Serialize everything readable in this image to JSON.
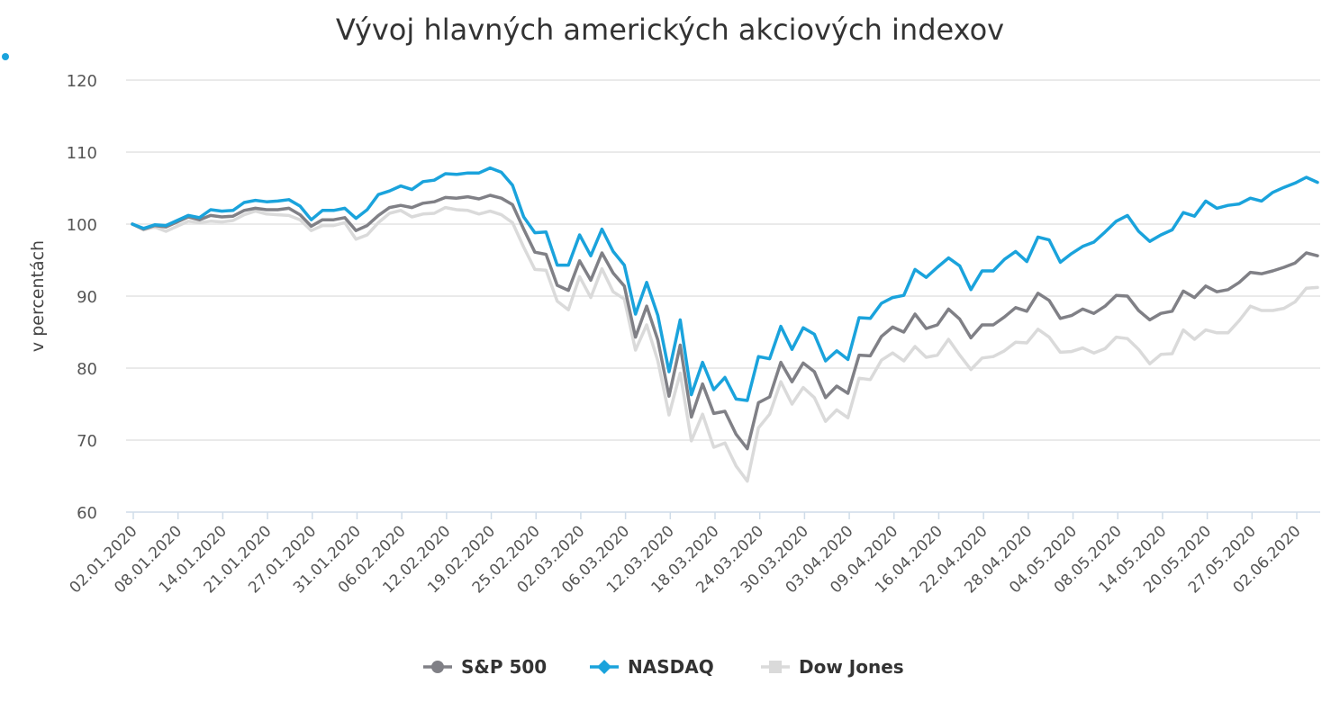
{
  "chart_data": {
    "type": "line",
    "title": "Vývoj hlavných amerických akciových indexov",
    "ylabel": "v percentách",
    "xlabel": "",
    "ylim": [
      60,
      120
    ],
    "yticks": [
      "60",
      "70",
      "80",
      "90",
      "100",
      "110",
      "120"
    ],
    "grid": true,
    "legend": "bottom-center",
    "x_tick_labels": [
      "02.01.2020",
      "08.01.2020",
      "14.01.2020",
      "21.01.2020",
      "27.01.2020",
      "31.01.2020",
      "06.02.2020",
      "12.02.2020",
      "19.02.2020",
      "25.02.2020",
      "02.03.2020",
      "06.03.2020",
      "12.03.2020",
      "18.03.2020",
      "24.03.2020",
      "30.03.2020",
      "03.04.2020",
      "09.04.2020",
      "16.04.2020",
      "22.04.2020",
      "28.04.2020",
      "04.05.2020",
      "08.05.2020",
      "14.05.2020",
      "20.05.2020",
      "27.05.2020",
      "02.06.2020"
    ],
    "series": [
      {
        "name": "S&P 500",
        "color": "#808086",
        "marker": "circle",
        "values": [
          100.0,
          99.3,
          99.8,
          99.6,
          100.3,
          101.0,
          100.6,
          101.2,
          101.0,
          101.1,
          101.9,
          102.2,
          102.0,
          102.0,
          102.2,
          101.3,
          99.7,
          100.6,
          100.6,
          100.9,
          99.1,
          99.8,
          101.2,
          102.3,
          102.6,
          102.3,
          102.9,
          103.1,
          103.7,
          103.6,
          103.8,
          103.5,
          104.0,
          103.6,
          102.7,
          99.3,
          96.1,
          95.8,
          91.5,
          90.8,
          94.9,
          92.2,
          96.0,
          93.2,
          91.4,
          84.3,
          88.6,
          83.9,
          76.1,
          83.2,
          73.2,
          77.8,
          73.7,
          74.0,
          70.8,
          68.8,
          75.2,
          76.0,
          80.8,
          78.1,
          80.7,
          79.5,
          75.9,
          77.5,
          76.5,
          81.8,
          81.7,
          84.4,
          85.7,
          85.0,
          87.5,
          85.5,
          86.0,
          88.2,
          86.8,
          84.2,
          86.0,
          86.0,
          87.1,
          88.4,
          87.9,
          90.4,
          89.4,
          86.9,
          87.3,
          88.2,
          87.6,
          88.6,
          90.1,
          90.0,
          88.0,
          86.7,
          87.6,
          87.9,
          90.7,
          89.8,
          91.4,
          90.6,
          90.9,
          91.9,
          93.3,
          93.1,
          93.5,
          94.0,
          94.6,
          96.0,
          95.6
        ]
      },
      {
        "name": "NASDAQ",
        "color": "#1aa3dc",
        "marker": "diamond",
        "values": [
          100.0,
          99.4,
          99.9,
          99.8,
          100.5,
          101.2,
          100.9,
          102.0,
          101.8,
          101.9,
          103.0,
          103.3,
          103.1,
          103.2,
          103.4,
          102.5,
          100.6,
          101.9,
          101.9,
          102.2,
          100.8,
          102.0,
          104.1,
          104.6,
          105.3,
          104.8,
          105.9,
          106.1,
          107.0,
          106.9,
          107.1,
          107.1,
          107.8,
          107.2,
          105.4,
          101.0,
          98.8,
          98.9,
          94.3,
          94.3,
          98.5,
          95.6,
          99.3,
          96.2,
          94.3,
          87.5,
          91.9,
          87.3,
          79.5,
          86.7,
          76.3,
          80.8,
          77.0,
          78.7,
          75.7,
          75.5,
          81.6,
          81.3,
          85.8,
          82.6,
          85.6,
          84.7,
          81.0,
          82.4,
          81.2,
          87.0,
          86.9,
          89.0,
          89.8,
          90.1,
          93.7,
          92.6,
          94.0,
          95.3,
          94.2,
          90.9,
          93.5,
          93.5,
          95.1,
          96.2,
          94.8,
          98.2,
          97.8,
          94.7,
          95.9,
          96.9,
          97.5,
          98.9,
          100.4,
          101.2,
          99.0,
          97.6,
          98.5,
          99.2,
          101.6,
          101.1,
          103.2,
          102.2,
          102.6,
          102.8,
          103.6,
          103.2,
          104.4,
          105.1,
          105.7,
          106.5,
          105.8
        ]
      },
      {
        "name": "Dow Jones",
        "color": "#dadada",
        "marker": "square",
        "values": [
          100.0,
          99.2,
          99.6,
          99.0,
          99.7,
          100.4,
          100.2,
          100.4,
          100.3,
          100.5,
          101.3,
          101.8,
          101.4,
          101.3,
          101.2,
          100.6,
          99.1,
          99.8,
          99.8,
          100.2,
          97.9,
          98.5,
          100.2,
          101.5,
          101.9,
          101.0,
          101.4,
          101.5,
          102.3,
          102.0,
          101.9,
          101.4,
          101.8,
          101.3,
          100.2,
          96.8,
          93.7,
          93.6,
          89.3,
          88.1,
          92.7,
          89.8,
          93.8,
          90.6,
          89.6,
          82.5,
          86.0,
          81.0,
          73.5,
          79.3,
          69.9,
          73.6,
          69.0,
          69.6,
          66.4,
          64.3,
          71.7,
          73.6,
          78.1,
          75.0,
          77.3,
          75.9,
          72.6,
          74.2,
          73.1,
          78.6,
          78.4,
          81.1,
          82.1,
          81.0,
          83.0,
          81.5,
          81.8,
          84.0,
          81.8,
          79.8,
          81.4,
          81.6,
          82.4,
          83.6,
          83.5,
          85.4,
          84.3,
          82.2,
          82.3,
          82.8,
          82.1,
          82.7,
          84.3,
          84.1,
          82.6,
          80.6,
          81.9,
          82.0,
          85.3,
          84.0,
          85.3,
          84.9,
          84.9,
          86.6,
          88.6,
          88.0,
          88.0,
          88.3,
          89.2,
          91.1,
          91.2
        ]
      }
    ]
  }
}
